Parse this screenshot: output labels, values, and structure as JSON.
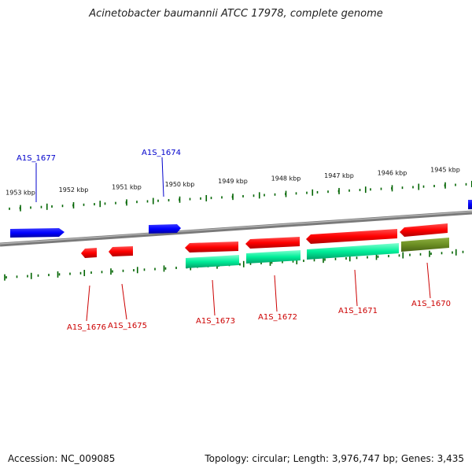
{
  "title": "Acinetobacter baumannii ATCC 17978, complete genome",
  "footer": {
    "accession": "Accession: NC_009085",
    "summary": "Topology: circular; Length: 3,976,747 bp; Genes: 3,435"
  },
  "colors": {
    "forward_gene": "#0000ff",
    "reverse_gene": "#ff0000",
    "cds": "#00ee99",
    "other_feature": "#6b8e23",
    "ruler": "#006400",
    "backbone": "#888888",
    "label_forward": "#0000cc",
    "label_reverse": "#cc0000"
  },
  "ruler_labels": [
    {
      "text": "1953 kbp",
      "kbp": 1953
    },
    {
      "text": "1952 kbp",
      "kbp": 1952
    },
    {
      "text": "1951 kbp",
      "kbp": 1951
    },
    {
      "text": "1950 kbp",
      "kbp": 1950
    },
    {
      "text": "1949 kbp",
      "kbp": 1949
    },
    {
      "text": "1948 kbp",
      "kbp": 1948
    },
    {
      "text": "1947 kbp",
      "kbp": 1947
    },
    {
      "text": "1946 kbp",
      "kbp": 1946
    },
    {
      "text": "1945 kbp",
      "kbp": 1945
    }
  ],
  "genes": [
    {
      "name": "A1S_1677",
      "strand": "forward"
    },
    {
      "name": "A1S_1674",
      "strand": "forward"
    },
    {
      "name": "A1S_1676",
      "strand": "reverse"
    },
    {
      "name": "A1S_1675",
      "strand": "reverse"
    },
    {
      "name": "A1S_1673",
      "strand": "reverse"
    },
    {
      "name": "A1S_1672",
      "strand": "reverse"
    },
    {
      "name": "A1S_1671",
      "strand": "reverse"
    },
    {
      "name": "A1S_1670",
      "strand": "reverse"
    }
  ]
}
